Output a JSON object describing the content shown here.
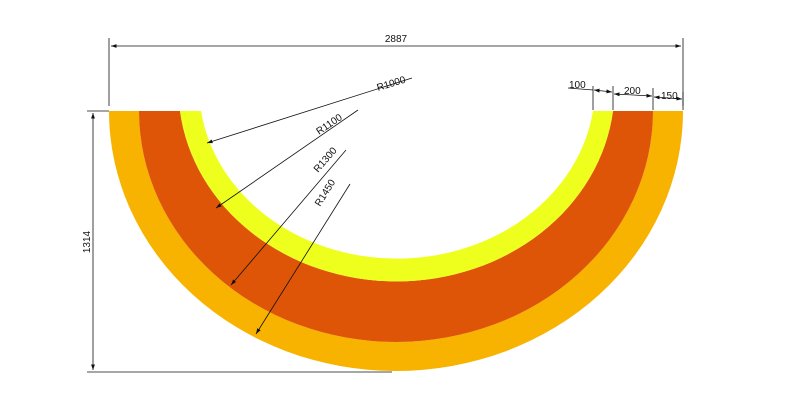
{
  "dimensions": {
    "overall_width": "2887",
    "height": "1314",
    "band_widths": [
      "100",
      "200",
      "150"
    ],
    "radii": [
      "R1000",
      "R1100",
      "R1300",
      "R1450"
    ]
  },
  "colors": {
    "inner_band": "#EEFF1E",
    "middle_band": "#DE5508",
    "outer_band": "#F8B200",
    "line": "#111111",
    "background": "#FFFFFF"
  }
}
